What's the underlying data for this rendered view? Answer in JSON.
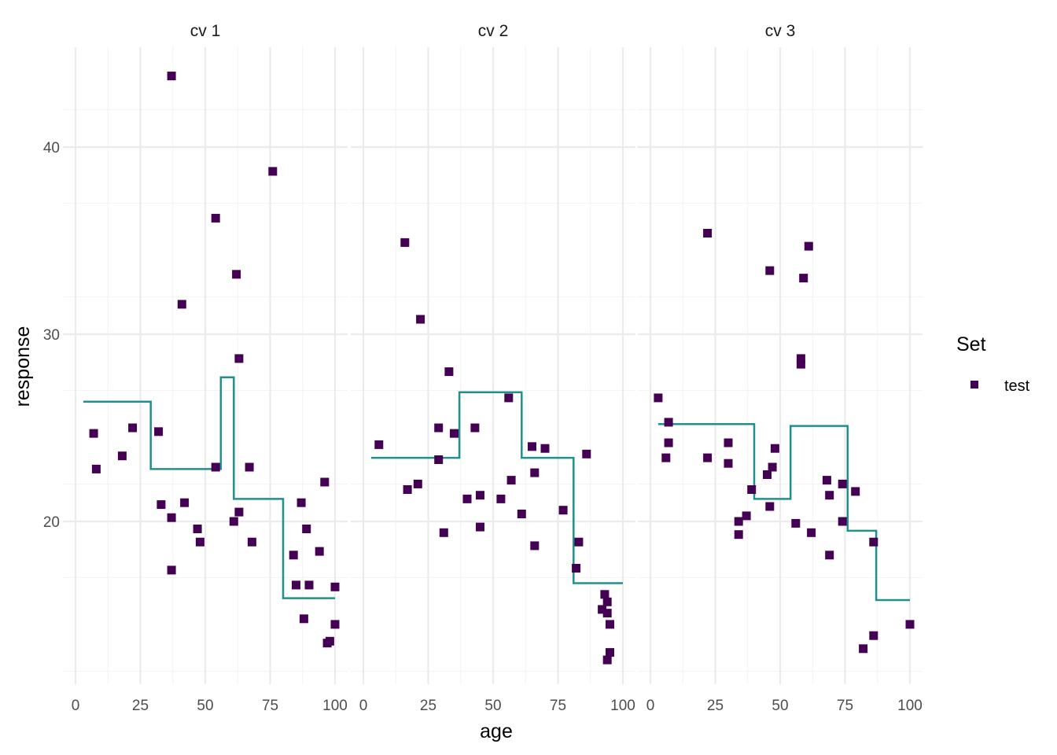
{
  "chart_data": {
    "type": "scatter",
    "xlabel": "age",
    "ylabel": "response",
    "xlim": [
      -5,
      105
    ],
    "ylim": [
      12,
      45
    ],
    "x_ticks": [
      0,
      25,
      50,
      75,
      100
    ],
    "y_ticks": [
      20,
      30,
      40
    ],
    "grid": true,
    "legend": {
      "title": "Set",
      "entries": [
        "test"
      ],
      "placement": "right"
    },
    "colors": {
      "points": "#440154",
      "fit_line": "#21908c"
    },
    "panels": [
      {
        "label": "cv 1",
        "points": [
          [
            7,
            24.7
          ],
          [
            8,
            22.8
          ],
          [
            18,
            23.5
          ],
          [
            22,
            25.0
          ],
          [
            32,
            24.8
          ],
          [
            33,
            20.9
          ],
          [
            37,
            20.2
          ],
          [
            37,
            17.4
          ],
          [
            37,
            43.8
          ],
          [
            41,
            31.6
          ],
          [
            42,
            21.0
          ],
          [
            47,
            19.6
          ],
          [
            48,
            18.9
          ],
          [
            54,
            36.2
          ],
          [
            54,
            22.9
          ],
          [
            61,
            20.0
          ],
          [
            62,
            33.2
          ],
          [
            63,
            28.7
          ],
          [
            63,
            20.5
          ],
          [
            67,
            22.9
          ],
          [
            68,
            18.9
          ],
          [
            76,
            38.7
          ],
          [
            84,
            18.2
          ],
          [
            85,
            16.6
          ],
          [
            87,
            21.0
          ],
          [
            88,
            14.8
          ],
          [
            89,
            19.6
          ],
          [
            90,
            16.6
          ],
          [
            94,
            18.4
          ],
          [
            96,
            22.1
          ],
          [
            97,
            13.5
          ],
          [
            98,
            13.6
          ],
          [
            100,
            16.5
          ],
          [
            100,
            14.5
          ]
        ],
        "fit": [
          [
            3,
            26.4
          ],
          [
            29,
            26.4
          ],
          [
            29,
            22.8
          ],
          [
            56,
            22.8
          ],
          [
            56,
            27.7
          ],
          [
            61,
            27.7
          ],
          [
            61,
            21.2
          ],
          [
            80,
            21.2
          ],
          [
            80,
            15.9
          ],
          [
            100,
            15.9
          ]
        ]
      },
      {
        "label": "cv 2",
        "points": [
          [
            6,
            24.1
          ],
          [
            16,
            34.9
          ],
          [
            17,
            21.7
          ],
          [
            21,
            22.0
          ],
          [
            22,
            30.8
          ],
          [
            29,
            25.0
          ],
          [
            29,
            23.3
          ],
          [
            31,
            19.4
          ],
          [
            33,
            28.0
          ],
          [
            35,
            24.7
          ],
          [
            40,
            21.2
          ],
          [
            43,
            25.0
          ],
          [
            45,
            21.4
          ],
          [
            45,
            19.7
          ],
          [
            53,
            21.2
          ],
          [
            56,
            26.6
          ],
          [
            57,
            22.2
          ],
          [
            61,
            20.4
          ],
          [
            65,
            24.0
          ],
          [
            66,
            22.6
          ],
          [
            66,
            18.7
          ],
          [
            70,
            23.9
          ],
          [
            77,
            20.6
          ],
          [
            82,
            17.5
          ],
          [
            83,
            18.9
          ],
          [
            86,
            23.6
          ],
          [
            92,
            15.3
          ],
          [
            93,
            16.1
          ],
          [
            94,
            15.7
          ],
          [
            94,
            15.1
          ],
          [
            94,
            12.6
          ],
          [
            95,
            14.5
          ],
          [
            95,
            13.0
          ]
        ],
        "fit": [
          [
            3,
            23.4
          ],
          [
            37,
            23.4
          ],
          [
            37,
            26.9
          ],
          [
            61,
            26.9
          ],
          [
            61,
            23.4
          ],
          [
            81,
            23.4
          ],
          [
            81,
            16.7
          ],
          [
            100,
            16.7
          ]
        ]
      },
      {
        "label": "cv 3",
        "points": [
          [
            3,
            26.6
          ],
          [
            6,
            23.4
          ],
          [
            7,
            25.3
          ],
          [
            7,
            24.2
          ],
          [
            22,
            35.4
          ],
          [
            22,
            23.4
          ],
          [
            30,
            23.1
          ],
          [
            30,
            24.2
          ],
          [
            34,
            20.0
          ],
          [
            34,
            19.3
          ],
          [
            37,
            20.3
          ],
          [
            39,
            21.7
          ],
          [
            45,
            22.5
          ],
          [
            46,
            20.8
          ],
          [
            46,
            33.4
          ],
          [
            47,
            22.9
          ],
          [
            48,
            23.9
          ],
          [
            56,
            19.9
          ],
          [
            58,
            28.4
          ],
          [
            58,
            28.7
          ],
          [
            59,
            33.0
          ],
          [
            61,
            34.7
          ],
          [
            62,
            19.4
          ],
          [
            68,
            22.2
          ],
          [
            69,
            21.4
          ],
          [
            69,
            18.2
          ],
          [
            74,
            22.0
          ],
          [
            74,
            20.0
          ],
          [
            79,
            21.6
          ],
          [
            82,
            13.2
          ],
          [
            86,
            13.9
          ],
          [
            86,
            18.9
          ],
          [
            100,
            14.5
          ]
        ],
        "fit": [
          [
            3,
            25.2
          ],
          [
            40,
            25.2
          ],
          [
            40,
            21.2
          ],
          [
            54,
            21.2
          ],
          [
            54,
            25.1
          ],
          [
            76,
            25.1
          ],
          [
            76,
            19.5
          ],
          [
            87,
            19.5
          ],
          [
            87,
            15.8
          ],
          [
            100,
            15.8
          ]
        ]
      }
    ]
  }
}
